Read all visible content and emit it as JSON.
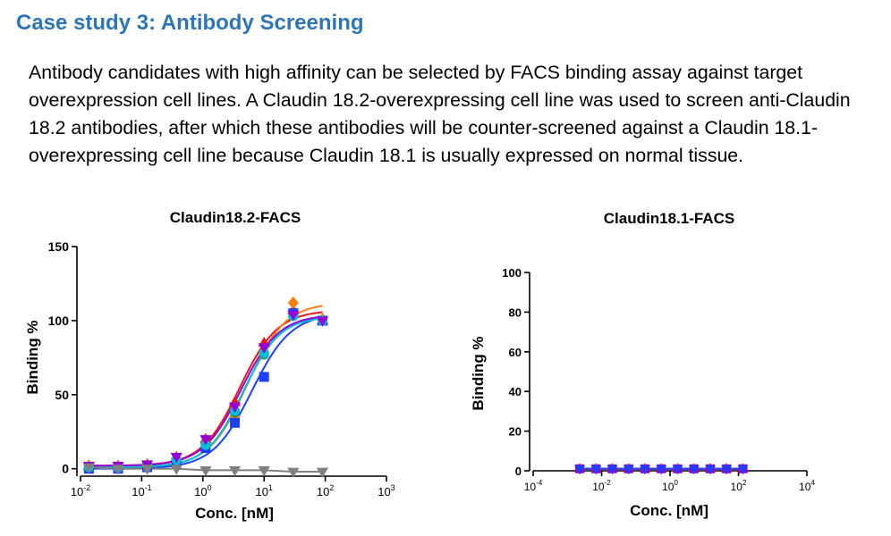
{
  "header": {
    "title": "Case study 3: Antibody Screening"
  },
  "body": {
    "paragraph": "Antibody candidates with high affinity can be selected by FACS binding assay against target overexpression cell lines. A Claudin 18.2-overexpressing cell line was used to screen anti-Claudin 18.2 antibodies, after which these antibodies will be counter-screened against a Claudin 18.1-overexpressing cell line because Claudin 18.1 is usually expressed on normal tissue."
  },
  "chart_data": [
    {
      "type": "scatter",
      "title": "Claudin18.2-FACS",
      "xlabel": "Conc. [nM]",
      "ylabel": "Binding %",
      "xscale": "log",
      "xlim": [
        0.01,
        1000
      ],
      "ylim": [
        -5,
        150
      ],
      "xticks": [
        0.01,
        0.1,
        1,
        10,
        100,
        1000
      ],
      "xtick_labels": [
        {
          "base": "10",
          "exp": "-2"
        },
        {
          "base": "10",
          "exp": "-1"
        },
        {
          "base": "10",
          "exp": "0"
        },
        {
          "base": "10",
          "exp": "1"
        },
        {
          "base": "10",
          "exp": "2"
        },
        {
          "base": "10",
          "exp": "3"
        }
      ],
      "yticks": [
        0,
        50,
        100,
        150
      ],
      "x": [
        0.0137,
        0.0412,
        0.123,
        0.37,
        1.11,
        3.33,
        10,
        30,
        90
      ],
      "series": [
        {
          "color": "#E41A1C",
          "marker": "triangle-up",
          "values": [
            2,
            2,
            3,
            8,
            20,
            45,
            85,
            107,
            100
          ]
        },
        {
          "color": "#FF7F0E",
          "marker": "diamond",
          "values": [
            2,
            1,
            2,
            7,
            17,
            35,
            79,
            112,
            101
          ]
        },
        {
          "color": "#1F3FFF",
          "marker": "square",
          "values": [
            0,
            0,
            1,
            4,
            14,
            31,
            62,
            105,
            100
          ]
        },
        {
          "color": "#2E8B57",
          "marker": "circle",
          "values": [
            1,
            1,
            2,
            6,
            16,
            38,
            77,
            103,
            100
          ]
        },
        {
          "color": "#00BFD8",
          "marker": "circle",
          "values": [
            1,
            1,
            2,
            6,
            16,
            39,
            78,
            103,
            100
          ]
        },
        {
          "color": "#9400D3",
          "marker": "triangle-down",
          "values": [
            2,
            2,
            3,
            8,
            20,
            42,
            82,
            104,
            100
          ]
        },
        {
          "color": "#808080",
          "marker": "triangle-down",
          "values": [
            1,
            0,
            0,
            0,
            -1,
            -1,
            -1,
            -2,
            -2
          ]
        }
      ]
    },
    {
      "type": "scatter",
      "title": "Claudin18.1-FACS",
      "xlabel": "Conc. [nM]",
      "ylabel": "Binding %",
      "xscale": "log",
      "xlim": [
        0.0001,
        10000
      ],
      "ylim": [
        0,
        100
      ],
      "xticks": [
        0.0001,
        0.01,
        1,
        100,
        10000
      ],
      "xtick_labels": [
        {
          "base": "10",
          "exp": "-4"
        },
        {
          "base": "10",
          "exp": "-2"
        },
        {
          "base": "10",
          "exp": "0"
        },
        {
          "base": "10",
          "exp": "2"
        },
        {
          "base": "10",
          "exp": "4"
        }
      ],
      "yticks": [
        0,
        20,
        40,
        60,
        80,
        100
      ],
      "x": [
        0.0023,
        0.0069,
        0.0206,
        0.0617,
        0.185,
        0.556,
        1.67,
        5,
        15,
        45,
        135
      ],
      "series": [
        {
          "color": "#E41A1C",
          "marker": "triangle-up",
          "values": [
            1,
            1,
            1,
            1,
            1,
            1,
            1,
            1,
            1,
            1,
            1
          ]
        },
        {
          "color": "#2E8B57",
          "marker": "circle",
          "values": [
            1,
            1,
            1,
            1,
            1,
            1,
            1,
            1,
            1,
            1,
            1
          ]
        },
        {
          "color": "#FF7F0E",
          "marker": "diamond",
          "values": [
            1,
            1,
            1,
            1,
            1,
            1,
            1,
            1,
            1,
            1,
            1
          ]
        },
        {
          "color": "#9400D3",
          "marker": "square",
          "values": [
            1,
            1,
            1,
            1,
            1,
            1,
            1,
            1,
            1,
            1,
            1
          ]
        },
        {
          "color": "#1F3FFF",
          "marker": "triangle-down",
          "values": [
            1,
            1,
            1,
            1,
            1,
            1,
            1,
            1,
            1,
            1,
            1
          ]
        }
      ]
    }
  ]
}
